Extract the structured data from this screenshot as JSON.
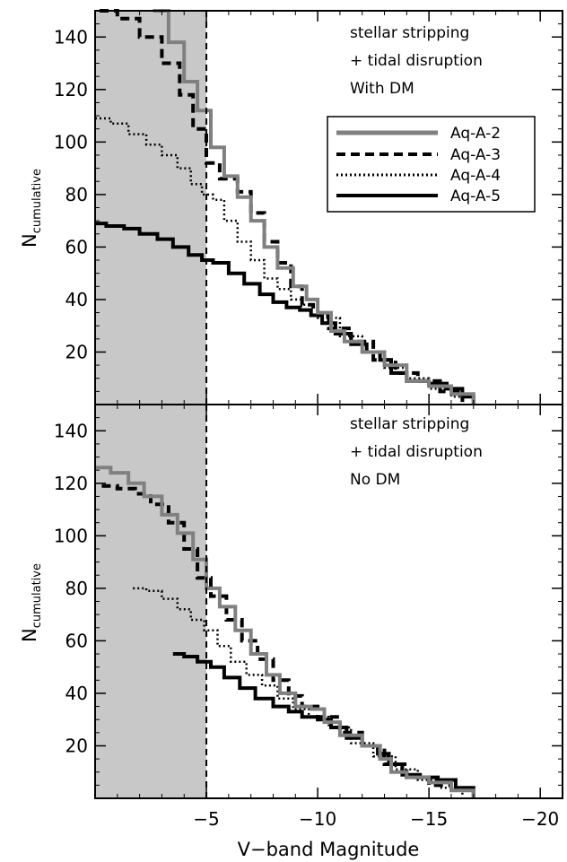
{
  "chart_data": [
    {
      "type": "line",
      "annotation": [
        "stellar stripping",
        "+ tidal disruption",
        "With DM"
      ],
      "ylabel": "N",
      "ylabel_sub": "cumulative",
      "xlim": [
        0,
        -21
      ],
      "ylim": [
        0,
        150
      ],
      "yticks": [
        20,
        40,
        60,
        80,
        100,
        120,
        140
      ],
      "shaded_region": [
        0,
        -5
      ],
      "vline": -5,
      "legend_position": "top-right",
      "series": [
        {
          "name": "Aq-A-2",
          "color": "#808080",
          "style": "solid",
          "x": [
            -2.6,
            -3.3,
            -4.0,
            -4.6,
            -5.2,
            -5.8,
            -6.4,
            -7.0,
            -7.6,
            -8.2,
            -8.9,
            -9.5,
            -10.0,
            -10.6,
            -11.2,
            -12.0,
            -13.0,
            -14.0,
            -15.0,
            -16.0,
            -17.0
          ],
          "y": [
            150,
            138,
            123,
            112,
            98,
            87,
            79,
            70,
            60,
            52,
            45,
            40,
            35,
            28,
            24,
            20,
            15,
            9,
            7,
            4,
            0
          ]
        },
        {
          "name": "Aq-A-3",
          "color": "#000000",
          "style": "dashed",
          "x": [
            -0.2,
            -1.0,
            -2.0,
            -3.0,
            -3.8,
            -4.4,
            -5.0,
            -5.6,
            -6.4,
            -7.0,
            -7.6,
            -8.2,
            -8.8,
            -9.3,
            -9.8,
            -10.5,
            -11.5,
            -12.5,
            -13.5,
            -14.5,
            -15.5,
            -16.5
          ],
          "y": [
            150,
            147,
            140,
            130,
            118,
            105,
            92,
            86,
            81,
            73,
            62,
            54,
            45,
            38,
            34,
            29,
            24,
            17,
            12,
            9,
            5,
            1
          ]
        },
        {
          "name": "Aq-A-4",
          "color": "#000000",
          "style": "dotted",
          "x": [
            0,
            -0.7,
            -1.5,
            -2.3,
            -3.0,
            -3.7,
            -4.3,
            -4.8,
            -5.3,
            -5.8,
            -6.4,
            -7.0,
            -7.6,
            -8.2,
            -8.8,
            -9.3,
            -10.0,
            -11.0,
            -12.0,
            -13.0,
            -14.0,
            -15.0,
            -16.0,
            -17.0
          ],
          "y": [
            109,
            107,
            103,
            99,
            95,
            90,
            84,
            80,
            78,
            70,
            62,
            55,
            48,
            44,
            40,
            38,
            33,
            26,
            20,
            14,
            10,
            6,
            3,
            0
          ]
        },
        {
          "name": "Aq-A-5",
          "color": "#000000",
          "style": "solid",
          "x": [
            0,
            -0.5,
            -1.3,
            -2.0,
            -2.8,
            -3.5,
            -4.2,
            -4.8,
            -5.3,
            -6.0,
            -6.7,
            -7.4,
            -8.0,
            -8.6,
            -9.2,
            -9.7,
            -10.2,
            -10.8,
            -11.5,
            -12.2,
            -12.8,
            -13.3,
            -14.0,
            -15.0,
            -15.8,
            -16.5,
            -17.0
          ],
          "y": [
            69,
            68,
            67,
            65,
            63,
            60,
            57,
            55,
            54,
            50,
            46,
            42,
            39,
            37,
            36,
            34,
            31,
            27,
            23,
            20,
            17,
            12,
            9,
            8,
            6,
            3,
            0
          ]
        }
      ]
    },
    {
      "type": "line",
      "annotation": [
        "stellar stripping",
        "+ tidal disruption",
        "No DM"
      ],
      "xlabel": "V−band Magnitude",
      "ylabel": "N",
      "ylabel_sub": "cumulative",
      "xlim": [
        0,
        -21
      ],
      "ylim": [
        0,
        150
      ],
      "xticks": [
        -5,
        -10,
        -15,
        -20
      ],
      "xtick_labels": [
        "−5",
        "−10",
        "−15",
        "−20"
      ],
      "yticks": [
        20,
        40,
        60,
        80,
        100,
        120,
        140
      ],
      "shaded_region": [
        0,
        -5
      ],
      "vline": -5,
      "series": [
        {
          "name": "Aq-A-2",
          "color": "#808080",
          "style": "solid",
          "x": [
            0,
            -0.7,
            -1.5,
            -2.2,
            -3.0,
            -3.7,
            -4.4,
            -5.0,
            -5.6,
            -6.3,
            -7.0,
            -7.7,
            -8.3,
            -9.0,
            -9.7,
            -10.3,
            -11.0,
            -12.0,
            -12.8,
            -13.3,
            -14.0,
            -15.0,
            -16.0,
            -17.0
          ],
          "y": [
            126,
            124,
            120,
            115,
            108,
            101,
            91,
            80,
            73,
            64,
            55,
            47,
            40,
            35,
            34,
            29,
            24,
            20,
            15,
            10,
            8,
            6,
            3,
            0
          ]
        },
        {
          "name": "Aq-A-3",
          "color": "#000000",
          "style": "dashed",
          "x": [
            -0.3,
            -1.0,
            -1.8,
            -2.5,
            -3.3,
            -4.0,
            -4.6,
            -5.2,
            -5.9,
            -6.6,
            -7.3,
            -8.0,
            -8.7,
            -9.3,
            -10.0,
            -11.0,
            -12.0,
            -13.0,
            -14.0,
            -15.0,
            -16.0
          ],
          "y": [
            119,
            118,
            116,
            112,
            105,
            95,
            84,
            77,
            68,
            60,
            53,
            45,
            39,
            35,
            31,
            25,
            20,
            13,
            8,
            5,
            2
          ]
        },
        {
          "name": "Aq-A-4",
          "color": "#000000",
          "style": "dotted",
          "x": [
            -1.7,
            -2.3,
            -3.0,
            -3.7,
            -4.3,
            -4.9,
            -5.5,
            -6.1,
            -6.8,
            -7.5,
            -8.2,
            -8.9,
            -9.6,
            -10.5,
            -11.5,
            -12.5,
            -13.5,
            -14.5,
            -15.5,
            -16.5
          ],
          "y": [
            80,
            79,
            76,
            72,
            68,
            64,
            58,
            52,
            47,
            43,
            38,
            34,
            31,
            27,
            21,
            16,
            11,
            7,
            4,
            1
          ]
        },
        {
          "name": "Aq-A-5",
          "color": "#000000",
          "style": "solid",
          "x": [
            -3.5,
            -4.0,
            -4.6,
            -5.2,
            -5.8,
            -6.5,
            -7.2,
            -8.0,
            -8.7,
            -9.3,
            -10.0,
            -10.6,
            -11.3,
            -12.0,
            -12.7,
            -13.2,
            -13.8,
            -14.6,
            -15.4,
            -16.2,
            -17.0
          ],
          "y": [
            55,
            54,
            52,
            50,
            46,
            42,
            38,
            35,
            33,
            31,
            30,
            27,
            23,
            20,
            17,
            13,
            9,
            8,
            7,
            4,
            0
          ]
        }
      ]
    }
  ]
}
